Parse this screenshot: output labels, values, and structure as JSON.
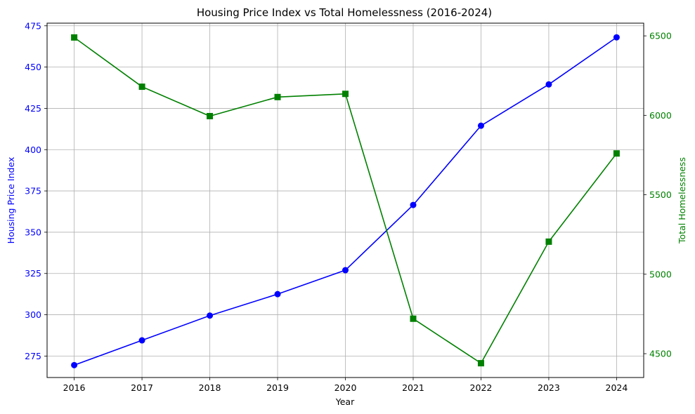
{
  "chart_data": {
    "type": "line",
    "title": "Housing Price Index vs Total Homelessness (2016-2024)",
    "xlabel": "Year",
    "x": [
      2016,
      2017,
      2018,
      2019,
      2020,
      2021,
      2022,
      2023,
      2024
    ],
    "x_tick_labels": [
      "2016",
      "2017",
      "2018",
      "2019",
      "2020",
      "2021",
      "2022",
      "2023",
      "2024"
    ],
    "xlim": [
      2015.6,
      2024.4
    ],
    "grid": true,
    "left_axis": {
      "label": "Housing Price Index",
      "color": "#0000ff",
      "ylim": [
        262.0,
        476.6
      ],
      "ticks": [
        275,
        300,
        325,
        350,
        375,
        400,
        425,
        450,
        475
      ]
    },
    "right_axis": {
      "label": "Total Homelessness",
      "color": "#008000",
      "ylim": [
        4350,
        6580
      ],
      "ticks": [
        4500,
        5000,
        5500,
        6000,
        6500
      ]
    },
    "series": [
      {
        "axis": "left",
        "color": "#0000ff",
        "marker": "circle",
        "values": [
          269.5,
          284.5,
          299.5,
          312.5,
          327.0,
          366.5,
          414.5,
          439.5,
          468.0
        ]
      },
      {
        "axis": "right",
        "color": "#008000",
        "marker": "square",
        "values": [
          6490,
          6180,
          5995,
          6115,
          6135,
          4720,
          4440,
          5205,
          5760
        ]
      }
    ]
  }
}
